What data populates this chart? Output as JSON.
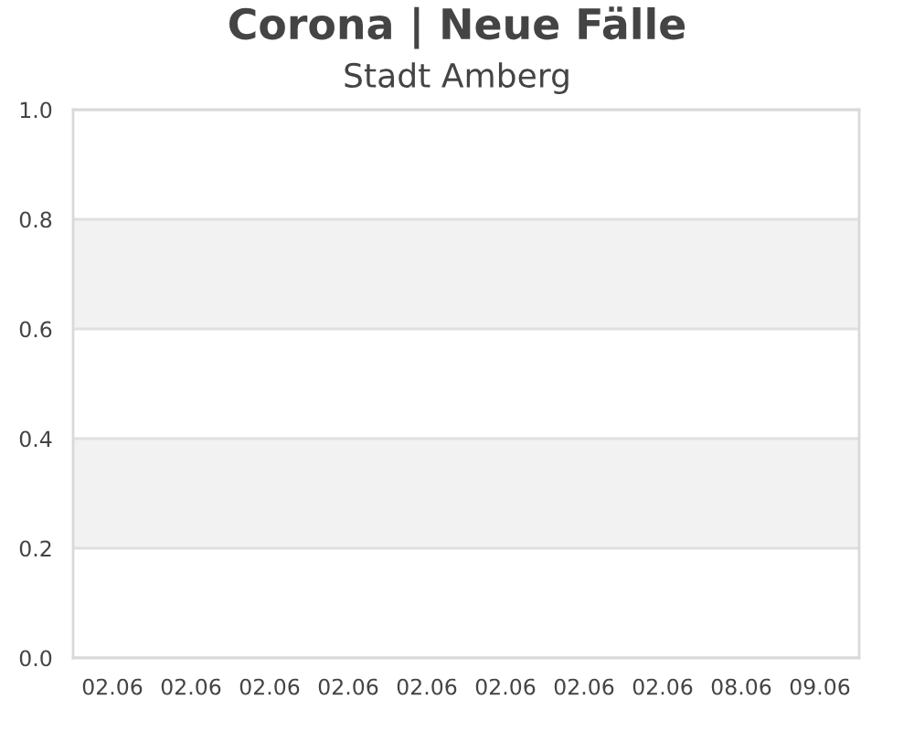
{
  "chart_data": {
    "type": "bar",
    "title": "Corona | Neue Fälle",
    "subtitle": "Stadt Amberg",
    "categories": [
      "02.06",
      "02.06",
      "02.06",
      "02.06",
      "02.06",
      "02.06",
      "02.06",
      "02.06",
      "08.06",
      "09.06"
    ],
    "values": [
      0,
      0,
      0,
      0,
      0,
      0,
      0,
      0,
      0,
      0
    ],
    "ylim": [
      0,
      1
    ],
    "yticks": [
      {
        "value": 0,
        "label": "0.0"
      },
      {
        "value": 0.2,
        "label": "0.2"
      },
      {
        "value": 0.4,
        "label": "0.4"
      },
      {
        "value": 0.6,
        "label": "0.6"
      },
      {
        "value": 0.8,
        "label": "0.8"
      },
      {
        "value": 1,
        "label": "1.0"
      }
    ],
    "grid": "y",
    "bands": [
      {
        "axis": "y",
        "from": 0.2,
        "to": 0.4,
        "color": "#f2f2f2"
      },
      {
        "axis": "y",
        "from": 0.6,
        "to": 0.8,
        "color": "#f2f2f2"
      }
    ]
  }
}
